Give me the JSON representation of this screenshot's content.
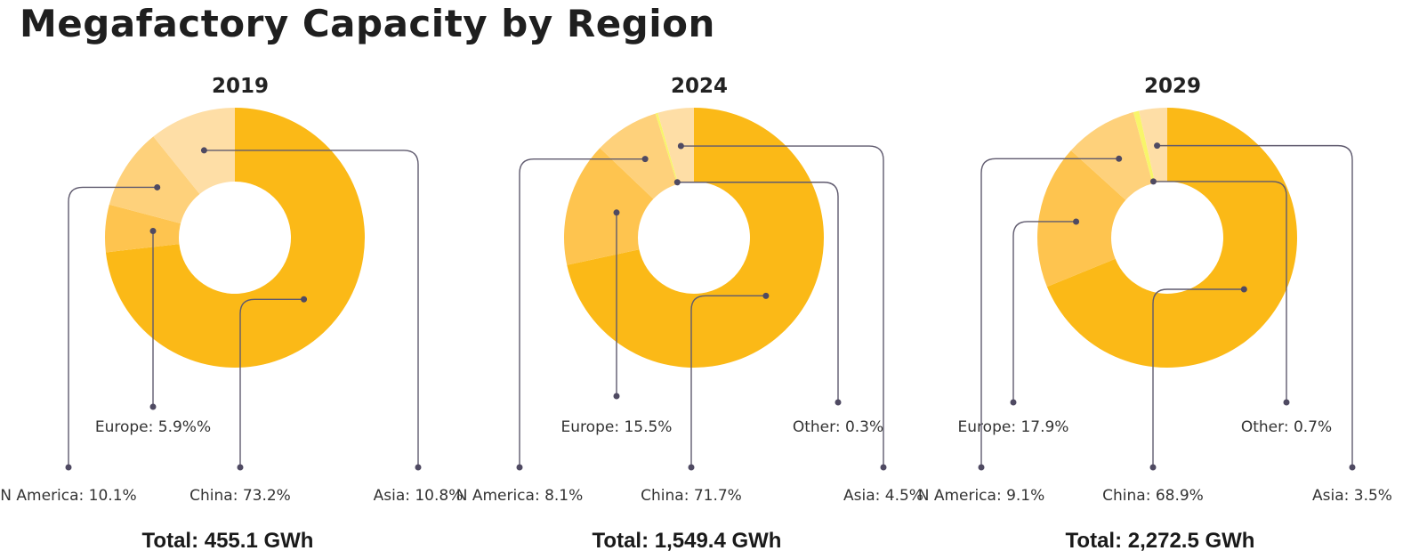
{
  "chart_data": {
    "type": "pie",
    "title": "Megafactory Capacity by Region",
    "donut": true,
    "colors": {
      "China": "#FBB917",
      "Europe": "#FEC44F",
      "N America": "#FED17B",
      "Asia": "#FEDEA6",
      "Other": "#F8F56A"
    },
    "charts": [
      {
        "year": "2019",
        "total_label": "Total: 455.1 GWh",
        "slices": [
          {
            "name": "China",
            "value": 73.2,
            "label": "China: 73.2%"
          },
          {
            "name": "Europe",
            "value": 5.9,
            "label": "Europe: 5.9%%"
          },
          {
            "name": "N America",
            "value": 10.1,
            "label": "N America: 10.1%"
          },
          {
            "name": "Asia",
            "value": 10.8,
            "label": "Asia: 10.8%"
          }
        ]
      },
      {
        "year": "2024",
        "total_label": "Total: 1,549.4 GWh",
        "slices": [
          {
            "name": "China",
            "value": 71.7,
            "label": "China: 71.7%"
          },
          {
            "name": "Europe",
            "value": 15.5,
            "label": "Europe: 15.5%"
          },
          {
            "name": "N America",
            "value": 8.1,
            "label": "N America: 8.1%"
          },
          {
            "name": "Other",
            "value": 0.3,
            "label": "Other: 0.3%"
          },
          {
            "name": "Asia",
            "value": 4.5,
            "label": "Asia: 4.5%"
          }
        ]
      },
      {
        "year": "2029",
        "total_label": "Total: 2,272.5 GWh",
        "slices": [
          {
            "name": "China",
            "value": 68.9,
            "label": "China: 68.9%"
          },
          {
            "name": "Europe",
            "value": 17.9,
            "label": "Europe: 17.9%"
          },
          {
            "name": "N America",
            "value": 9.1,
            "label": "N America: 9.1%"
          },
          {
            "name": "Other",
            "value": 0.7,
            "label": "Other: 0.7%"
          },
          {
            "name": "Asia",
            "value": 3.5,
            "label": "Asia: 3.5%"
          }
        ]
      }
    ]
  }
}
